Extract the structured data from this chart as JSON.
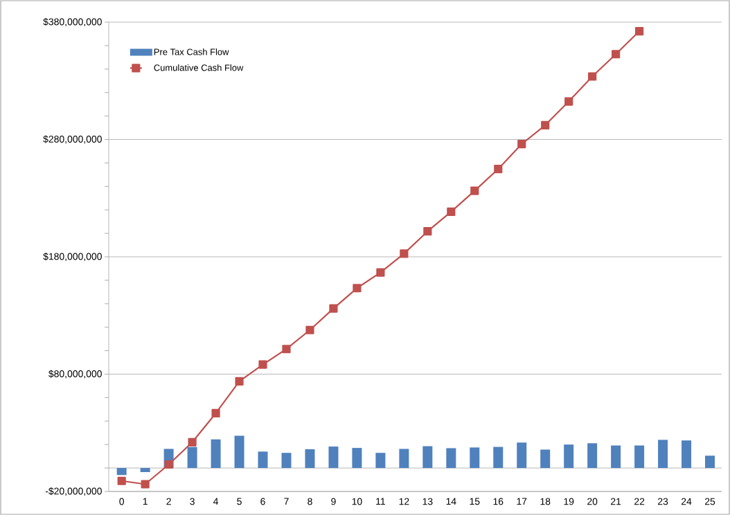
{
  "chart_data": {
    "type": "bar",
    "categories": [
      "0",
      "1",
      "2",
      "3",
      "4",
      "5",
      "6",
      "7",
      "8",
      "9",
      "10",
      "11",
      "12",
      "13",
      "14",
      "15",
      "16",
      "17",
      "18",
      "19",
      "20",
      "21",
      "22",
      "23",
      "24",
      "25"
    ],
    "series": [
      {
        "name": "Pre Tax Cash Flow",
        "color": "#4f81bd",
        "values": [
          -6000000,
          -3500000,
          16300000,
          17900000,
          24400000,
          27500000,
          14000000,
          12900000,
          16000000,
          18300000,
          17100000,
          12900000,
          16300000,
          18600000,
          16900000,
          17500000,
          18000000,
          21700000,
          15700000,
          20000000,
          21100000,
          19200000,
          19200000,
          24000000,
          23500000,
          10500000
        ]
      },
      {
        "name": "Cumulative Cash Flow",
        "type": "line",
        "color": "#c0504d",
        "marker": "square",
        "line_style": "solid",
        "values": [
          -11000000,
          -13800000,
          3000000,
          22000000,
          46700000,
          73900000,
          88200000,
          101400000,
          117600000,
          136000000,
          153300000,
          166600000,
          182700000,
          201700000,
          218400000,
          236300000,
          254800000,
          276100000,
          292200000,
          312400000,
          333700000,
          352700000,
          372300000,
          null,
          null,
          null
        ]
      }
    ],
    "ylim": [
      -20000000,
      380000000
    ],
    "yticks": [
      {
        "value": -20000000,
        "label": "-$20,000,000"
      },
      {
        "value": 80000000,
        "label": "$80,000,000"
      },
      {
        "value": 180000000,
        "label": "$180,000,000"
      },
      {
        "value": 280000000,
        "label": "$280,000,000"
      },
      {
        "value": 380000000,
        "label": "$380,000,000"
      }
    ],
    "grid": "y",
    "legend": "top left"
  }
}
